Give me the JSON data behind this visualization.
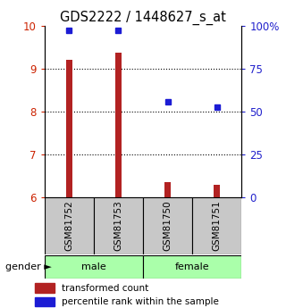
{
  "title": "GDS2222 / 1448627_s_at",
  "samples": [
    "GSM81752",
    "GSM81753",
    "GSM81750",
    "GSM81751"
  ],
  "transformed_counts": [
    9.22,
    9.37,
    6.35,
    6.28
  ],
  "percentile_ranks": [
    97.5,
    97.5,
    56.0,
    52.5
  ],
  "ylim_left": [
    6,
    10
  ],
  "ylim_right": [
    0,
    100
  ],
  "yticks_left": [
    6,
    7,
    8,
    9,
    10
  ],
  "yticks_right": [
    0,
    25,
    50,
    75,
    100
  ],
  "ytick_labels_right": [
    "0",
    "25",
    "50",
    "75",
    "100%"
  ],
  "gender_labels": [
    "male",
    "female"
  ],
  "bar_color": "#B22222",
  "dot_color": "#1C1CD4",
  "bar_baseline": 6,
  "bar_width": 0.12,
  "label_color_left": "#CC2200",
  "label_color_right": "#2020CC",
  "sample_box_color": "#C8C8C8",
  "gender_box_color": "#AAFFAA",
  "legend_transformed": "transformed count",
  "legend_percentile": "percentile rank within the sample",
  "gender_label": "gender"
}
